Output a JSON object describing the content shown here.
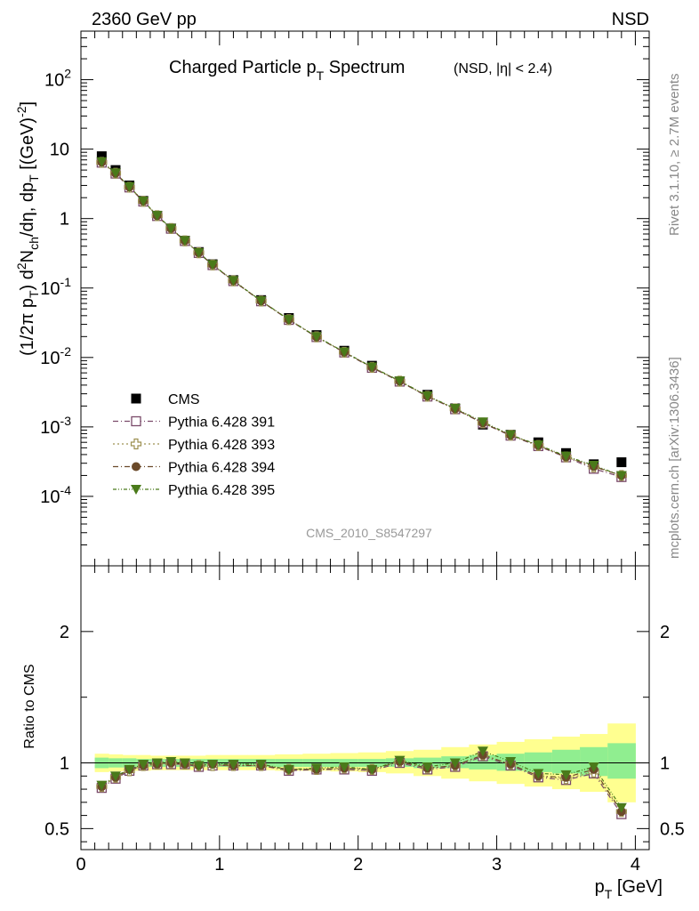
{
  "header": {
    "left": "2360 GeV pp",
    "right": "NSD",
    "title_main": "Charged Particle p",
    "title_sub": "T",
    "title_rest": " Spectrum",
    "title_extra": "(NSD, |η| < 2.4)",
    "side_rivet": "Rivet 3.1.10, ≥ 2.7M events",
    "side_mcplots": "mcplots.cern.ch [arXiv:1306.3436]",
    "analysis": "CMS_2010_S8547297"
  },
  "chart_data": [
    {
      "type": "scatter",
      "panel": "main",
      "yscale": "log",
      "ylabel": "(1/2π p_T) d²N_ch/dη, dp_T [(GeV)^-2]",
      "xlim": [
        0,
        4.1
      ],
      "ylim": [
        1e-05,
        500
      ],
      "ytick_labels": [
        "10^-4",
        "10^-3",
        "10^-2",
        "10^-1",
        "1",
        "10",
        "10^2"
      ],
      "x": [
        0.15,
        0.25,
        0.35,
        0.45,
        0.55,
        0.65,
        0.75,
        0.85,
        0.95,
        1.1,
        1.3,
        1.5,
        1.7,
        1.9,
        2.1,
        2.3,
        2.5,
        2.7,
        2.9,
        3.1,
        3.3,
        3.5,
        3.7,
        3.9
      ],
      "series": [
        {
          "name": "CMS",
          "color": "#000000",
          "marker": "square-filled",
          "values": [
            7.9,
            5.0,
            3.0,
            1.8,
            1.1,
            0.72,
            0.48,
            0.33,
            0.22,
            0.13,
            0.067,
            0.037,
            0.021,
            0.0125,
            0.0076,
            0.0045,
            0.0029,
            0.00185,
            0.00108,
            0.00077,
            0.0006,
            0.00042,
            0.00029,
            0.00031
          ]
        },
        {
          "name": "Pythia 6.428 391",
          "color": "#7a4a6a",
          "marker": "square-open",
          "dash": "6,3,1,3",
          "values": [
            6.4,
            4.45,
            2.81,
            1.76,
            1.09,
            0.715,
            0.476,
            0.32,
            0.214,
            0.126,
            0.0645,
            0.0348,
            0.0197,
            0.0118,
            0.0071,
            0.0045,
            0.00274,
            0.0018,
            0.00113,
            0.00075,
            0.00053,
            0.000365,
            0.00025,
            0.00019
          ]
        },
        {
          "name": "Pythia 6.428 393",
          "color": "#9c9050",
          "marker": "cross-open",
          "dash": "2,3",
          "values": [
            6.45,
            4.5,
            2.83,
            1.77,
            1.1,
            0.72,
            0.478,
            0.322,
            0.215,
            0.127,
            0.0648,
            0.035,
            0.0198,
            0.0119,
            0.0072,
            0.00455,
            0.00276,
            0.00182,
            0.00114,
            0.00076,
            0.00054,
            0.00037,
            0.000265,
            0.0002
          ]
        },
        {
          "name": "Pythia 6.428 394",
          "color": "#6b4a2a",
          "marker": "circle-filled",
          "dash": "6,3,1,3",
          "values": [
            6.5,
            4.5,
            2.85,
            1.78,
            1.1,
            0.72,
            0.48,
            0.322,
            0.216,
            0.127,
            0.065,
            0.035,
            0.0198,
            0.0119,
            0.0072,
            0.00455,
            0.00277,
            0.00182,
            0.00114,
            0.00076,
            0.00054,
            0.00037,
            0.00027,
            0.0002
          ]
        },
        {
          "name": "Pythia 6.428 395",
          "color": "#4a7a1a",
          "marker": "triangle-down-filled",
          "dash": "4,2,1,2,1,2",
          "values": [
            6.6,
            4.55,
            2.88,
            1.79,
            1.11,
            0.725,
            0.482,
            0.324,
            0.217,
            0.128,
            0.0655,
            0.0352,
            0.02,
            0.012,
            0.0073,
            0.0046,
            0.0028,
            0.00185,
            0.00118,
            0.00077,
            0.00055,
            0.00038,
            0.00028,
            0.0002
          ]
        }
      ]
    },
    {
      "type": "scatter",
      "panel": "ratio",
      "ylabel": "Ratio to CMS",
      "xlabel": "p_T [GeV]",
      "xlim": [
        0,
        4.1
      ],
      "ylim": [
        0.34,
        2.5
      ],
      "xtick_labels": [
        "0",
        "1",
        "2",
        "3",
        "4"
      ],
      "ytick_labels": [
        "0.5",
        "1",
        "2"
      ],
      "x": [
        0.15,
        0.25,
        0.35,
        0.45,
        0.55,
        0.65,
        0.75,
        0.85,
        0.95,
        1.1,
        1.3,
        1.5,
        1.7,
        1.9,
        2.1,
        2.3,
        2.5,
        2.7,
        2.9,
        3.1,
        3.3,
        3.5,
        3.7,
        3.9
      ],
      "bands": {
        "edges": [
          0.1,
          0.2,
          0.3,
          0.4,
          0.5,
          0.6,
          0.7,
          0.8,
          0.9,
          1.0,
          1.2,
          1.4,
          1.6,
          1.8,
          2.0,
          2.2,
          2.4,
          2.6,
          2.8,
          3.0,
          3.2,
          3.4,
          3.6,
          3.8,
          4.0
        ],
        "inner_color": "#90ee90",
        "outer_color": "#ffff90",
        "inner_lo": [
          0.96,
          0.965,
          0.965,
          0.97,
          0.97,
          0.97,
          0.97,
          0.97,
          0.97,
          0.97,
          0.97,
          0.97,
          0.97,
          0.97,
          0.97,
          0.97,
          0.96,
          0.96,
          0.95,
          0.94,
          0.93,
          0.92,
          0.9,
          0.88
        ],
        "inner_hi": [
          1.04,
          1.035,
          1.035,
          1.03,
          1.03,
          1.03,
          1.03,
          1.03,
          1.03,
          1.03,
          1.03,
          1.03,
          1.03,
          1.03,
          1.03,
          1.035,
          1.04,
          1.05,
          1.06,
          1.07,
          1.08,
          1.1,
          1.12,
          1.15
        ],
        "outer_lo": [
          0.93,
          0.935,
          0.94,
          0.94,
          0.945,
          0.945,
          0.945,
          0.945,
          0.945,
          0.945,
          0.945,
          0.94,
          0.94,
          0.935,
          0.93,
          0.92,
          0.9,
          0.88,
          0.86,
          0.84,
          0.82,
          0.8,
          0.78,
          0.7
        ],
        "outer_hi": [
          1.07,
          1.065,
          1.06,
          1.06,
          1.055,
          1.055,
          1.055,
          1.055,
          1.06,
          1.06,
          1.06,
          1.065,
          1.07,
          1.075,
          1.08,
          1.09,
          1.1,
          1.12,
          1.14,
          1.16,
          1.18,
          1.2,
          1.22,
          1.3
        ]
      },
      "series": [
        {
          "name": "Pythia 6.428 391",
          "values": [
            0.81,
            0.88,
            0.94,
            0.98,
            0.99,
            0.99,
            0.99,
            0.97,
            0.98,
            0.98,
            0.98,
            0.94,
            0.95,
            0.95,
            0.94,
            1.0,
            0.95,
            0.97,
            1.05,
            0.98,
            0.89,
            0.87,
            0.92,
            0.61
          ]
        },
        {
          "name": "Pythia 6.428 393",
          "values": [
            0.82,
            0.89,
            0.94,
            0.98,
            0.99,
            1.0,
            0.99,
            0.98,
            0.98,
            0.98,
            0.98,
            0.95,
            0.95,
            0.96,
            0.95,
            1.01,
            0.96,
            0.98,
            1.06,
            0.99,
            0.9,
            0.88,
            0.93,
            0.63
          ]
        },
        {
          "name": "Pythia 6.428 394",
          "values": [
            0.82,
            0.89,
            0.95,
            0.98,
            0.99,
            1.0,
            0.99,
            0.98,
            0.99,
            0.98,
            0.98,
            0.95,
            0.95,
            0.96,
            0.95,
            1.01,
            0.96,
            0.98,
            1.06,
            0.99,
            0.9,
            0.89,
            0.95,
            0.63
          ]
        },
        {
          "name": "Pythia 6.428 395",
          "values": [
            0.83,
            0.9,
            0.95,
            0.99,
            1.0,
            1.01,
            1.0,
            0.98,
            0.99,
            0.99,
            0.99,
            0.95,
            0.96,
            0.97,
            0.95,
            1.02,
            0.97,
            1.0,
            1.09,
            1.01,
            0.92,
            0.91,
            0.97,
            0.66
          ]
        }
      ]
    }
  ]
}
